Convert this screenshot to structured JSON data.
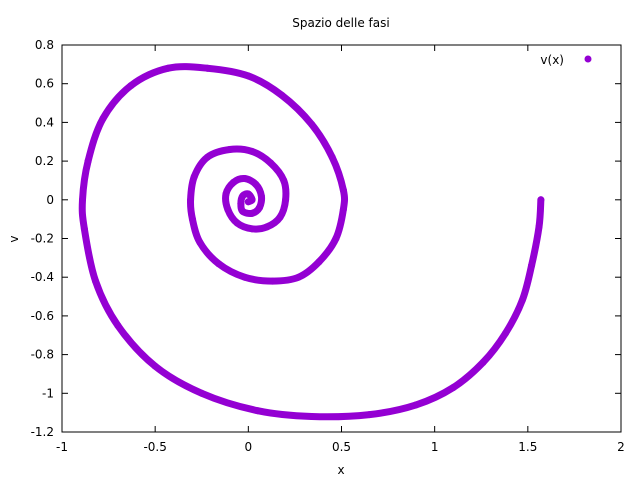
{
  "chart_data": {
    "type": "scatter",
    "title": "Spazio delle fasi",
    "xlabel": "x",
    "ylabel": "v",
    "xlim": [
      -1,
      2
    ],
    "ylim": [
      -1.2,
      0.8
    ],
    "xticks": [
      -1,
      -0.5,
      0,
      0.5,
      1,
      1.5,
      2
    ],
    "xtick_labels": [
      "-1",
      "-0.5",
      "0",
      "0.5",
      "1",
      "1.5",
      "2"
    ],
    "yticks": [
      -1.2,
      -1,
      -0.8,
      -0.6,
      -0.4,
      -0.2,
      0,
      0.2,
      0.4,
      0.6,
      0.8
    ],
    "ytick_labels": [
      "-1.2",
      "-1",
      "-0.8",
      "-0.6",
      "-0.4",
      "-0.2",
      "0",
      "0.2",
      "0.4",
      "0.6",
      "0.8"
    ],
    "grid": false,
    "legend_position": "top-right",
    "series": [
      {
        "name": "v(x)",
        "color": "#9400d3",
        "marker": "point",
        "points": [
          [
            1.57,
            0.0
          ],
          [
            1.56,
            -0.14
          ],
          [
            1.52,
            -0.34
          ],
          [
            1.47,
            -0.52
          ],
          [
            1.38,
            -0.69
          ],
          [
            1.26,
            -0.84
          ],
          [
            1.1,
            -0.97
          ],
          [
            0.9,
            -1.06
          ],
          [
            0.65,
            -1.11
          ],
          [
            0.34,
            -1.12
          ],
          [
            0.05,
            -1.09
          ],
          [
            -0.25,
            -1.0
          ],
          [
            -0.5,
            -0.86
          ],
          [
            -0.7,
            -0.65
          ],
          [
            -0.82,
            -0.42
          ],
          [
            -0.88,
            -0.15
          ],
          [
            -0.89,
            0.0
          ],
          [
            -0.86,
            0.2
          ],
          [
            -0.78,
            0.42
          ],
          [
            -0.63,
            0.59
          ],
          [
            -0.43,
            0.68
          ],
          [
            -0.22,
            0.68
          ],
          [
            0.0,
            0.64
          ],
          [
            0.18,
            0.54
          ],
          [
            0.34,
            0.39
          ],
          [
            0.45,
            0.22
          ],
          [
            0.51,
            0.05
          ],
          [
            0.51,
            -0.05
          ],
          [
            0.47,
            -0.2
          ],
          [
            0.38,
            -0.32
          ],
          [
            0.27,
            -0.4
          ],
          [
            0.13,
            -0.42
          ],
          [
            -0.02,
            -0.4
          ],
          [
            -0.16,
            -0.33
          ],
          [
            -0.26,
            -0.22
          ],
          [
            -0.3,
            -0.1
          ],
          [
            -0.31,
            0.0
          ],
          [
            -0.29,
            0.12
          ],
          [
            -0.22,
            0.22
          ],
          [
            -0.1,
            0.26
          ],
          [
            0.02,
            0.25
          ],
          [
            0.12,
            0.19
          ],
          [
            0.19,
            0.1
          ],
          [
            0.2,
            0.0
          ],
          [
            0.17,
            -0.09
          ],
          [
            0.1,
            -0.14
          ],
          [
            0.02,
            -0.15
          ],
          [
            -0.06,
            -0.12
          ],
          [
            -0.11,
            -0.05
          ],
          [
            -0.12,
            0.03
          ],
          [
            -0.08,
            0.09
          ],
          [
            -0.02,
            0.11
          ],
          [
            0.04,
            0.08
          ],
          [
            0.07,
            0.02
          ],
          [
            0.06,
            -0.04
          ],
          [
            0.02,
            -0.07
          ],
          [
            -0.03,
            -0.06
          ],
          [
            -0.04,
            -0.02
          ],
          [
            -0.03,
            0.02
          ],
          [
            0.0,
            0.03
          ],
          [
            0.02,
            0.0
          ],
          [
            0.0,
            -0.01
          ]
        ]
      }
    ]
  }
}
